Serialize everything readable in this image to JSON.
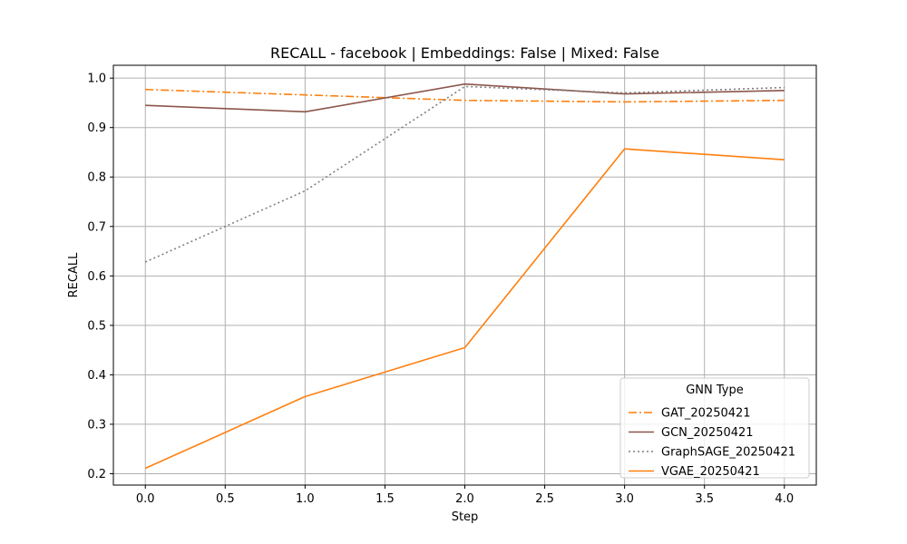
{
  "chart_data": {
    "type": "line",
    "title": "RECALL - facebook | Embeddings: False | Mixed: False",
    "xlabel": "Step",
    "ylabel": "RECALL",
    "xlim": [
      -0.2,
      4.2
    ],
    "ylim": [
      0.177,
      1.026
    ],
    "xticks": [
      0.0,
      0.5,
      1.0,
      1.5,
      2.0,
      2.5,
      3.0,
      3.5,
      4.0
    ],
    "xtick_labels": [
      "0.0",
      "0.5",
      "1.0",
      "1.5",
      "2.0",
      "2.5",
      "3.0",
      "3.5",
      "4.0"
    ],
    "yticks": [
      0.2,
      0.3,
      0.4,
      0.5,
      0.6,
      0.7,
      0.8,
      0.9,
      1.0
    ],
    "ytick_labels": [
      "0.2",
      "0.3",
      "0.4",
      "0.5",
      "0.6",
      "0.7",
      "0.8",
      "0.9",
      "1.0"
    ],
    "grid": true,
    "legend": {
      "title": "GNN Type",
      "position": "lower-right"
    },
    "x": [
      0,
      1,
      2,
      3,
      4
    ],
    "series": [
      {
        "name": "GAT_20250421",
        "values": [
          0.977,
          0.966,
          0.955,
          0.952,
          0.955
        ],
        "color": "#ff7f0e",
        "style": "dashdot"
      },
      {
        "name": "GCN_20250421",
        "values": [
          0.945,
          0.932,
          0.988,
          0.968,
          0.975
        ],
        "color": "#8c564b",
        "style": "solid"
      },
      {
        "name": "GraphSAGE_20250421",
        "values": [
          0.628,
          0.772,
          0.983,
          0.97,
          0.981
        ],
        "color": "#7f7f7f",
        "style": "dotted"
      },
      {
        "name": "VGAE_20250421",
        "values": [
          0.211,
          0.356,
          0.455,
          0.857,
          0.835
        ],
        "color": "#ff7f0e",
        "style": "solid"
      }
    ]
  }
}
